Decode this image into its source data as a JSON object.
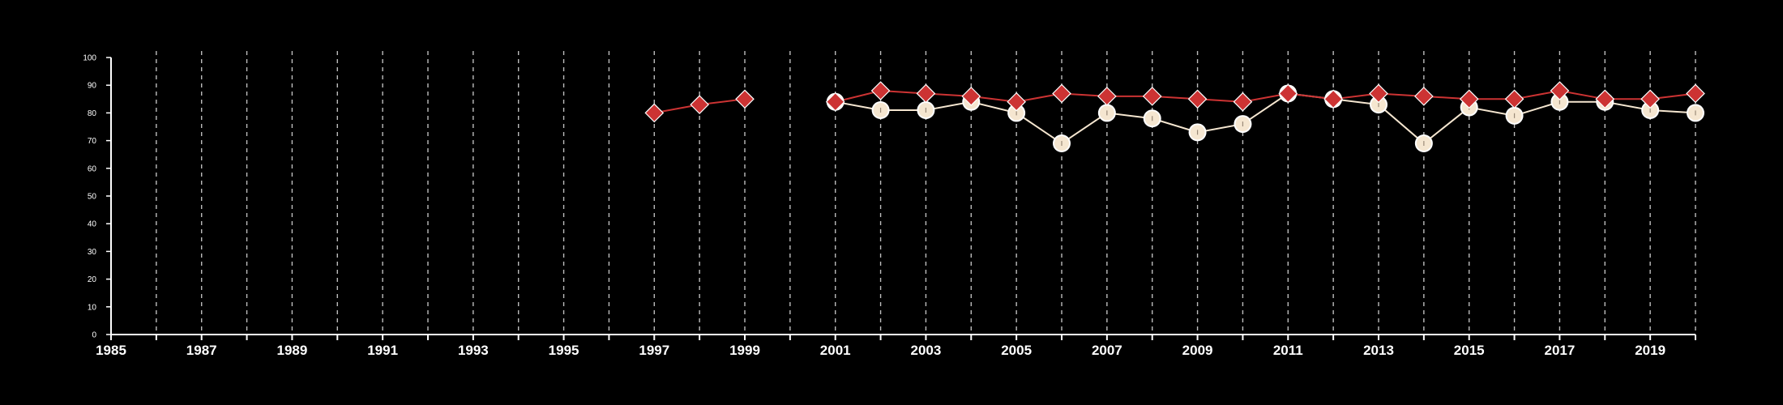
{
  "chart_data": {
    "type": "line",
    "title": "",
    "xlabel": "",
    "ylabel": "",
    "xlim": [
      1985,
      2020
    ],
    "ylim": [
      0,
      100
    ],
    "x_tick_labels": [
      "1985",
      "1987",
      "1989",
      "1991",
      "1993",
      "1995",
      "1997",
      "1999",
      "2001",
      "2003",
      "2005",
      "2007",
      "2009",
      "2011",
      "2013",
      "2015",
      "2017",
      "2019"
    ],
    "y_tick_labels": [
      "0",
      "10",
      "20",
      "30",
      "40",
      "50",
      "60",
      "70",
      "80",
      "90",
      "100"
    ],
    "grid": "vertical dashed lines at each year",
    "legend": "none",
    "series": [
      {
        "color": "#f5e6d0",
        "marker": "circle",
        "points": [
          {
            "x": 2001,
            "y": 84
          },
          {
            "x": 2002,
            "y": 81
          },
          {
            "x": 2003,
            "y": 81
          },
          {
            "x": 2004,
            "y": 84
          },
          {
            "x": 2005,
            "y": 80
          },
          {
            "x": 2006,
            "y": 69
          },
          {
            "x": 2007,
            "y": 80
          },
          {
            "x": 2008,
            "y": 78
          },
          {
            "x": 2009,
            "y": 73
          },
          {
            "x": 2010,
            "y": 76
          },
          {
            "x": 2011,
            "y": 87
          },
          {
            "x": 2012,
            "y": 85
          },
          {
            "x": 2013,
            "y": 83
          },
          {
            "x": 2014,
            "y": 69
          },
          {
            "x": 2015,
            "y": 82
          },
          {
            "x": 2016,
            "y": 79
          },
          {
            "x": 2017,
            "y": 84
          },
          {
            "x": 2018,
            "y": 84
          },
          {
            "x": 2019,
            "y": 81
          },
          {
            "x": 2020,
            "y": 80
          }
        ]
      },
      {
        "color": "#cc3333",
        "marker": "diamond",
        "points": [
          {
            "x": 1997,
            "y": 80
          },
          {
            "x": 1998,
            "y": 83
          },
          {
            "x": 1999,
            "y": 85
          },
          {
            "x": 2001,
            "y": 84
          },
          {
            "x": 2002,
            "y": 88
          },
          {
            "x": 2003,
            "y": 87
          },
          {
            "x": 2004,
            "y": 86
          },
          {
            "x": 2005,
            "y": 84
          },
          {
            "x": 2006,
            "y": 87
          },
          {
            "x": 2007,
            "y": 86
          },
          {
            "x": 2008,
            "y": 86
          },
          {
            "x": 2009,
            "y": 85
          },
          {
            "x": 2010,
            "y": 84
          },
          {
            "x": 2011,
            "y": 87
          },
          {
            "x": 2012,
            "y": 85
          },
          {
            "x": 2013,
            "y": 87
          },
          {
            "x": 2014,
            "y": 86
          },
          {
            "x": 2015,
            "y": 85
          },
          {
            "x": 2016,
            "y": 85
          },
          {
            "x": 2017,
            "y": 88
          },
          {
            "x": 2018,
            "y": 85
          },
          {
            "x": 2019,
            "y": 85
          },
          {
            "x": 2020,
            "y": 87
          }
        ]
      }
    ]
  }
}
